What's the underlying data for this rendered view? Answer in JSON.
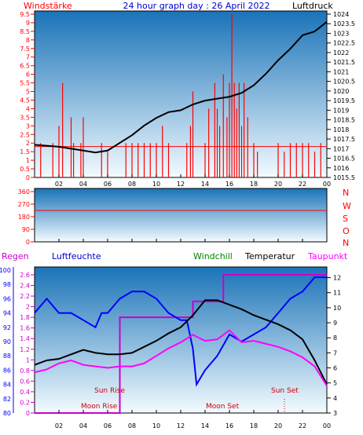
{
  "header": {
    "left_label": "Windstärke",
    "title": "24 hour graph day : 26 April 2022",
    "right_label": "Luftdruck"
  },
  "legend": {
    "regen": "Regen",
    "luftfeuchte": "Luftfeuchte",
    "windchill": "Windchill",
    "temperatur": "Temperatur",
    "taupunkt": "Taupunkt"
  },
  "compass": [
    "N",
    "W",
    "S",
    "O",
    "N"
  ],
  "annotations": {
    "sun_rise": "Sun Rise",
    "sun_set": "Sun Set",
    "moon_rise": "Moon Rise",
    "moon_set": "Moon Set"
  },
  "colors": {
    "wind": "#ff0000",
    "gust_band": "#0000ff",
    "pressure": "#000000",
    "humidity": "#0000ff",
    "windchill": "#008000",
    "temperature": "#000000",
    "dewpoint": "#ff00ff",
    "rain": "#cc00cc",
    "axis_left": "#ff0000",
    "axis_right": "#000000",
    "humidity_axis": "#0000ff",
    "direction": "#ff0000"
  },
  "chart_data": [
    {
      "type": "line",
      "name": "wind-pressure",
      "x_ticks": [
        "02",
        "04",
        "06",
        "08",
        "10",
        "12",
        "14",
        "16",
        "18",
        "20",
        "22",
        "00"
      ],
      "y_left_ticks": [
        "0",
        "0.5",
        "1",
        "1.5",
        "2",
        "2.5",
        "3",
        "3.5",
        "4",
        "4.5",
        "5",
        "5.5",
        "6",
        "6.5",
        "7",
        "7.5",
        "8",
        "8.5",
        "9",
        "9.5"
      ],
      "y_right_ticks": [
        "1015.5",
        "1016",
        "1016.5",
        "1017",
        "1017.5",
        "1018",
        "1018.5",
        "1019",
        "1019.5",
        "1020",
        "1020.5",
        "1021",
        "1021.5",
        "1022",
        "1022.5",
        "1023",
        "1023.5",
        "1024"
      ],
      "y_left_range": [
        0,
        9.5
      ],
      "y_right_range": [
        1015.5,
        1024
      ],
      "pressure": {
        "x": [
          0,
          2,
          4,
          5,
          6,
          7,
          8,
          9,
          10,
          11,
          12,
          13,
          14,
          15,
          16,
          17,
          18,
          19,
          20,
          21,
          22,
          23,
          24
        ],
        "y": [
          1017.2,
          1017.1,
          1016.9,
          1016.8,
          1016.9,
          1017.3,
          1017.7,
          1018.2,
          1018.6,
          1018.9,
          1019.0,
          1019.3,
          1019.5,
          1019.6,
          1019.7,
          1019.9,
          1020.3,
          1020.9,
          1021.6,
          1022.2,
          1022.9,
          1023.1,
          1023.6
        ]
      },
      "wind_bars": {
        "x": [
          0.5,
          1.5,
          2.0,
          2.3,
          3.0,
          3.2,
          3.8,
          4.0,
          5.5,
          6.0,
          7.5,
          8.0,
          8.5,
          9.0,
          9.5,
          10.0,
          10.5,
          11.0,
          12.5,
          12.8,
          13.0,
          14.0,
          14.3,
          14.8,
          15.0,
          15.2,
          15.5,
          15.8,
          16.0,
          16.2,
          16.4,
          16.6,
          16.8,
          17.0,
          17.2,
          17.5,
          18.0,
          18.3,
          20.0,
          20.5,
          21.0,
          21.5,
          22.0,
          22.5,
          23.0,
          23.5
        ],
        "y": [
          2,
          2,
          3,
          5.5,
          3.5,
          2,
          2,
          3.5,
          2,
          1.5,
          2,
          2,
          2,
          2,
          2,
          2,
          3,
          2,
          2,
          3,
          5,
          2,
          4,
          5.5,
          4,
          3,
          6,
          3.5,
          5.5,
          9.5,
          5.5,
          4,
          5.5,
          3,
          5.5,
          3.5,
          2,
          1.5,
          2,
          1.5,
          2,
          2,
          2,
          2,
          1.5,
          2
        ]
      }
    },
    {
      "type": "line",
      "name": "wind-direction",
      "y_ticks": [
        "0",
        "90",
        "180",
        "270",
        "360"
      ],
      "y_range": [
        0,
        360
      ]
    },
    {
      "type": "line",
      "name": "temperature-humidity",
      "x_ticks": [
        "02",
        "04",
        "06",
        "08",
        "10",
        "12",
        "14",
        "16",
        "18",
        "20",
        "22",
        "00"
      ],
      "y_left_ticks": [
        "0",
        "0.2",
        "0.4",
        "0.6",
        "0.8",
        "1",
        "1.2",
        "1.4",
        "1.6",
        "1.8",
        "2",
        "2.2",
        "2.4",
        "2.6"
      ],
      "y_left_range": [
        0,
        2.6
      ],
      "humidity_ticks": [
        "80",
        "82",
        "84",
        "86",
        "88",
        "90",
        "92",
        "94",
        "96",
        "98",
        "100"
      ],
      "humidity_range": [
        80,
        100
      ],
      "y_right_ticks": [
        "3",
        "4",
        "5",
        "6",
        "7",
        "8",
        "9",
        "10",
        "11",
        "12"
      ],
      "y_right_range": [
        3,
        12.5
      ],
      "temperature": {
        "x": [
          0,
          1,
          2,
          3,
          4,
          5,
          6,
          7,
          8,
          9,
          10,
          11,
          12,
          13,
          14,
          15,
          16,
          17,
          18,
          19,
          20,
          21,
          22,
          23,
          24
        ],
        "y": [
          6.2,
          6.5,
          6.6,
          6.9,
          7.2,
          7.0,
          6.9,
          6.9,
          7.0,
          7.4,
          7.8,
          8.3,
          8.7,
          9.5,
          10.5,
          10.5,
          10.2,
          9.9,
          9.5,
          9.2,
          8.9,
          8.5,
          7.9,
          6.5,
          4.9
        ]
      },
      "dewpoint": {
        "x": [
          0,
          1,
          2,
          3,
          4,
          5,
          6,
          7,
          8,
          9,
          10,
          11,
          12,
          13,
          14,
          15,
          16,
          17,
          18,
          19,
          20,
          21,
          22,
          23,
          24
        ],
        "y": [
          5.7,
          5.9,
          6.3,
          6.5,
          6.2,
          6.1,
          6.0,
          6.1,
          6.1,
          6.3,
          6.8,
          7.3,
          7.7,
          8.2,
          7.8,
          7.9,
          8.5,
          7.7,
          7.8,
          7.6,
          7.4,
          7.1,
          6.7,
          6.1,
          4.8
        ]
      },
      "humidity": {
        "x": [
          0,
          1,
          2,
          3,
          4,
          5,
          5.5,
          6,
          7,
          8,
          9,
          10,
          11,
          12,
          12.5,
          13,
          13.3,
          14,
          15,
          16,
          17,
          18,
          19,
          20,
          21,
          22,
          23,
          24
        ],
        "y": [
          94,
          96,
          94,
          94,
          93,
          92,
          94,
          94,
          96,
          97,
          97,
          96,
          94,
          93,
          93,
          89,
          84,
          86,
          88,
          91,
          90,
          91,
          92,
          94,
          96,
          97,
          99,
          99
        ]
      },
      "rain_mm": {
        "x": [
          0,
          7,
          7,
          13,
          13,
          15.5,
          15.5,
          24
        ],
        "y": [
          0,
          0,
          1.8,
          1.8,
          2.1,
          2.1,
          2.6,
          2.6
        ]
      }
    }
  ]
}
